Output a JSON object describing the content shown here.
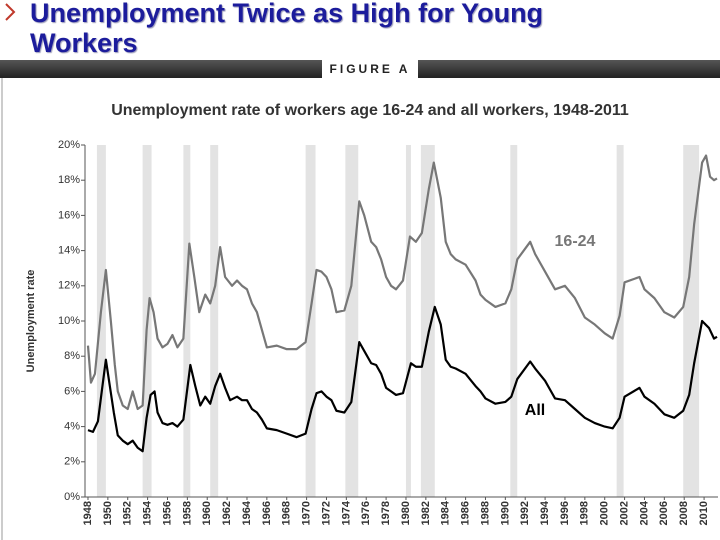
{
  "header": {
    "title": "Unemployment Twice as High for Young Workers",
    "figure": "FIGURE A"
  },
  "chart_data": {
    "type": "line",
    "title": "Unemployment rate of workers age 16-24 and all workers, 1948-2011",
    "y_label": "Unemployment rate",
    "xlim": [
      1947.7,
      2011.4
    ],
    "xticks": [
      1948,
      1950,
      1952,
      1954,
      1956,
      1958,
      1960,
      1962,
      1964,
      1966,
      1968,
      1970,
      1972,
      1974,
      1976,
      1978,
      1980,
      1982,
      1984,
      1986,
      1988,
      1990,
      1992,
      1994,
      1996,
      1998,
      2000,
      2002,
      2004,
      2006,
      2008,
      2010
    ],
    "ylim": [
      0,
      20
    ],
    "yticks": [
      {
        "value": 0,
        "label": "0%"
      },
      {
        "value": 2,
        "label": "2%"
      },
      {
        "value": 4,
        "label": "4%"
      },
      {
        "value": 6,
        "label": "6%"
      },
      {
        "value": 8,
        "label": "8%"
      },
      {
        "value": 10,
        "label": "10%"
      },
      {
        "value": 12,
        "label": "12%"
      },
      {
        "value": 14,
        "label": "14%"
      },
      {
        "value": 16,
        "label": "16%"
      },
      {
        "value": 18,
        "label": "18%"
      },
      {
        "value": 20,
        "label": "20%"
      }
    ],
    "recessions": [
      [
        1948.9,
        1949.8
      ],
      [
        1953.5,
        1954.4
      ],
      [
        1957.6,
        1958.3
      ],
      [
        1960.3,
        1961.1
      ],
      [
        1969.9,
        1970.9
      ],
      [
        1973.9,
        1975.2
      ],
      [
        1980.0,
        1980.5
      ],
      [
        1981.5,
        1982.9
      ],
      [
        1990.5,
        1991.2
      ],
      [
        2001.2,
        2001.9
      ],
      [
        2007.9,
        2009.5
      ]
    ],
    "recession_color": "#e3e3e3",
    "series": [
      {
        "name": "16-24",
        "color": "#777777",
        "x": [
          1948.0,
          1948.3,
          1948.7,
          1949.3,
          1949.8,
          1950.3,
          1950.7,
          1951.0,
          1951.5,
          1952.0,
          1952.5,
          1953.0,
          1953.5,
          1953.9,
          1954.2,
          1954.6,
          1955.0,
          1955.5,
          1956.0,
          1956.5,
          1957.0,
          1957.6,
          1958.2,
          1958.7,
          1959.2,
          1959.8,
          1960.3,
          1960.8,
          1961.3,
          1961.8,
          1962.5,
          1963.0,
          1963.5,
          1964.0,
          1964.5,
          1965.0,
          1965.5,
          1966.0,
          1967.0,
          1968.0,
          1969.0,
          1969.9,
          1970.5,
          1971.0,
          1971.5,
          1972.0,
          1972.5,
          1973.0,
          1973.8,
          1974.5,
          1975.3,
          1975.8,
          1976.5,
          1977.0,
          1977.5,
          1978.0,
          1978.5,
          1979.0,
          1979.7,
          1980.4,
          1981.0,
          1981.6,
          1982.3,
          1982.8,
          1983.5,
          1984.0,
          1984.5,
          1985.0,
          1986.0,
          1987.0,
          1987.5,
          1988.0,
          1989.0,
          1990.0,
          1990.6,
          1991.2,
          1992.5,
          1993.0,
          1994.0,
          1995.0,
          1996.0,
          1997.0,
          1998.0,
          1999.0,
          2000.0,
          2000.8,
          2001.5,
          2002.0,
          2003.5,
          2004.0,
          2005.0,
          2006.0,
          2007.0,
          2007.9,
          2008.5,
          2009.0,
          2009.8,
          2010.2,
          2010.6,
          2011.0,
          2011.3
        ],
        "values": [
          8.6,
          6.5,
          7.0,
          10.5,
          12.9,
          10.0,
          7.5,
          6.0,
          5.2,
          5.0,
          6.0,
          5.0,
          5.2,
          9.5,
          11.3,
          10.5,
          9.0,
          8.5,
          8.7,
          9.2,
          8.5,
          9.0,
          14.4,
          12.5,
          10.5,
          11.5,
          11.0,
          12.0,
          14.2,
          12.5,
          12.0,
          12.3,
          12.0,
          11.8,
          11.0,
          10.5,
          9.5,
          8.5,
          8.6,
          8.4,
          8.4,
          8.8,
          11.0,
          12.9,
          12.8,
          12.5,
          11.8,
          10.5,
          10.6,
          12.0,
          16.8,
          16.0,
          14.5,
          14.2,
          13.5,
          12.5,
          12.0,
          11.8,
          12.3,
          14.8,
          14.5,
          15.0,
          17.5,
          19.0,
          17.0,
          14.5,
          13.8,
          13.5,
          13.2,
          12.3,
          11.5,
          11.2,
          10.8,
          11.0,
          11.8,
          13.5,
          14.5,
          13.8,
          12.8,
          11.8,
          12.0,
          11.3,
          10.2,
          9.8,
          9.3,
          9.0,
          10.3,
          12.2,
          12.5,
          11.8,
          11.3,
          10.5,
          10.2,
          10.8,
          12.5,
          15.5,
          19.0,
          19.4,
          18.2,
          18.0,
          18.1
        ]
      },
      {
        "name": "All",
        "color": "#000000",
        "x": [
          1948.0,
          1948.5,
          1949.0,
          1949.5,
          1949.8,
          1950.2,
          1950.6,
          1951.0,
          1951.5,
          1952.0,
          1952.5,
          1953.0,
          1953.5,
          1953.9,
          1954.3,
          1954.7,
          1955.0,
          1955.5,
          1956.0,
          1956.5,
          1957.0,
          1957.6,
          1958.3,
          1958.8,
          1959.3,
          1959.8,
          1960.3,
          1960.8,
          1961.3,
          1961.8,
          1962.3,
          1963.0,
          1963.5,
          1964.0,
          1964.5,
          1965.0,
          1965.5,
          1966.0,
          1967.0,
          1968.0,
          1969.0,
          1969.9,
          1970.5,
          1971.0,
          1971.5,
          1972.0,
          1972.5,
          1973.0,
          1973.8,
          1974.5,
          1975.3,
          1975.8,
          1976.5,
          1977.0,
          1977.5,
          1978.0,
          1978.5,
          1979.0,
          1979.7,
          1980.5,
          1981.0,
          1981.6,
          1982.3,
          1982.9,
          1983.5,
          1984.0,
          1984.5,
          1985.0,
          1986.0,
          1987.0,
          1987.5,
          1988.0,
          1989.0,
          1990.0,
          1990.6,
          1991.2,
          1992.5,
          1993.0,
          1994.0,
          1994.5,
          1995.0,
          1996.0,
          1997.0,
          1998.0,
          1999.0,
          2000.0,
          2000.8,
          2001.5,
          2002.0,
          2003.5,
          2004.0,
          2005.0,
          2006.0,
          2007.0,
          2007.9,
          2008.5,
          2009.0,
          2009.8,
          2010.5,
          2011.0,
          2011.3
        ],
        "values": [
          3.8,
          3.7,
          4.3,
          6.5,
          7.8,
          6.3,
          4.8,
          3.5,
          3.2,
          3.0,
          3.2,
          2.8,
          2.6,
          4.5,
          5.8,
          6.0,
          4.8,
          4.2,
          4.1,
          4.2,
          4.0,
          4.4,
          7.5,
          6.3,
          5.2,
          5.7,
          5.3,
          6.3,
          7.0,
          6.2,
          5.5,
          5.7,
          5.5,
          5.5,
          5.0,
          4.8,
          4.4,
          3.9,
          3.8,
          3.6,
          3.4,
          3.6,
          5.0,
          5.9,
          6.0,
          5.7,
          5.5,
          4.9,
          4.8,
          5.4,
          8.8,
          8.3,
          7.6,
          7.5,
          7.0,
          6.2,
          6.0,
          5.8,
          5.9,
          7.6,
          7.4,
          7.4,
          9.4,
          10.8,
          9.8,
          7.8,
          7.4,
          7.3,
          7.0,
          6.3,
          6.0,
          5.6,
          5.3,
          5.4,
          5.7,
          6.7,
          7.7,
          7.3,
          6.6,
          6.1,
          5.6,
          5.5,
          5.0,
          4.5,
          4.2,
          4.0,
          3.9,
          4.5,
          5.7,
          6.2,
          5.7,
          5.3,
          4.7,
          4.5,
          4.9,
          5.8,
          7.6,
          10.0,
          9.6,
          9.0,
          9.1
        ]
      }
    ]
  }
}
